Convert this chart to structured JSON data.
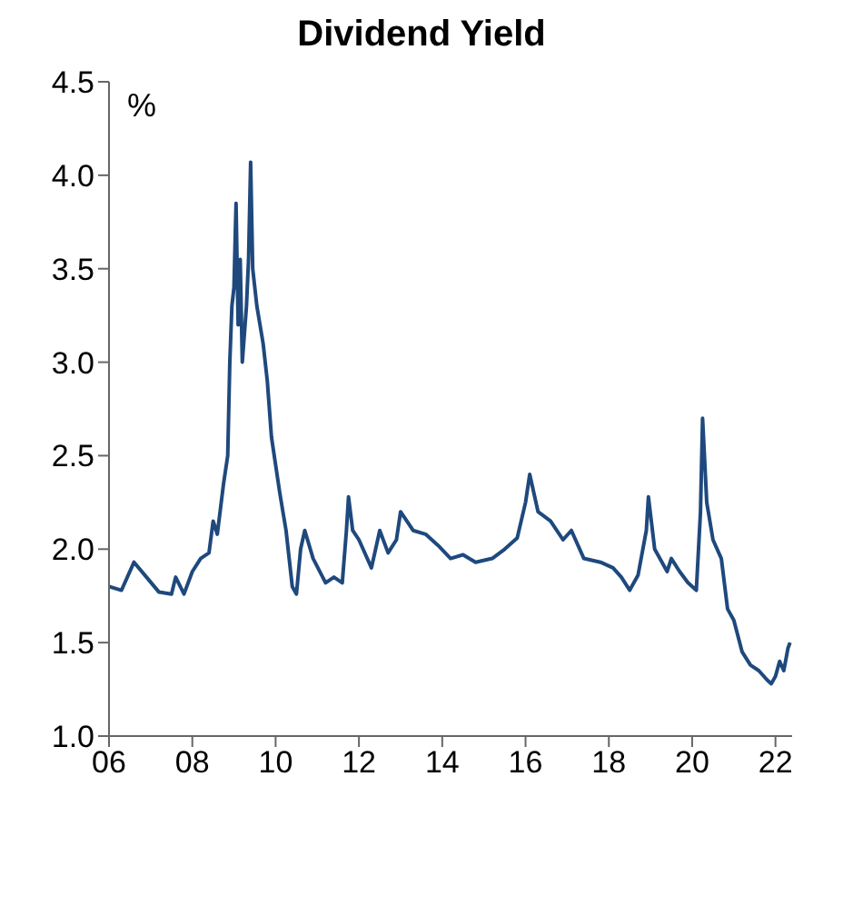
{
  "chart_data": {
    "type": "line",
    "title": "Dividend Yield",
    "ylabel": "%",
    "x": [
      2006.0,
      2006.3,
      2006.6,
      2006.9,
      2007.2,
      2007.5,
      2007.6,
      2007.8,
      2008.0,
      2008.2,
      2008.4,
      2008.5,
      2008.6,
      2008.75,
      2008.85,
      2008.9,
      2008.95,
      2009.0,
      2009.05,
      2009.1,
      2009.15,
      2009.2,
      2009.3,
      2009.35,
      2009.4,
      2009.45,
      2009.55,
      2009.7,
      2009.8,
      2009.9,
      2010.1,
      2010.25,
      2010.4,
      2010.5,
      2010.6,
      2010.7,
      2010.9,
      2011.2,
      2011.4,
      2011.6,
      2011.7,
      2011.75,
      2011.85,
      2012.0,
      2012.3,
      2012.5,
      2012.7,
      2012.9,
      2013.0,
      2013.3,
      2013.6,
      2013.9,
      2014.2,
      2014.5,
      2014.8,
      2015.2,
      2015.5,
      2015.8,
      2016.0,
      2016.1,
      2016.3,
      2016.6,
      2016.9,
      2017.1,
      2017.4,
      2017.8,
      2018.1,
      2018.3,
      2018.5,
      2018.7,
      2018.9,
      2018.95,
      2019.1,
      2019.4,
      2019.5,
      2019.7,
      2019.9,
      2020.1,
      2020.2,
      2020.25,
      2020.35,
      2020.5,
      2020.7,
      2020.85,
      2021.0,
      2021.2,
      2021.4,
      2021.6,
      2021.8,
      2021.9,
      2022.0,
      2022.1,
      2022.2,
      2022.3,
      2022.35
    ],
    "series": [
      {
        "color": "#1f497d",
        "values": [
          1.8,
          1.78,
          1.93,
          1.85,
          1.77,
          1.76,
          1.85,
          1.76,
          1.88,
          1.95,
          1.98,
          2.15,
          2.08,
          2.35,
          2.5,
          3.0,
          3.3,
          3.4,
          3.85,
          3.2,
          3.55,
          3.0,
          3.3,
          3.55,
          4.07,
          3.5,
          3.3,
          3.1,
          2.9,
          2.6,
          2.3,
          2.1,
          1.8,
          1.76,
          2.0,
          2.1,
          1.95,
          1.82,
          1.85,
          1.82,
          2.1,
          2.28,
          2.1,
          2.05,
          1.9,
          2.1,
          1.98,
          2.05,
          2.2,
          2.1,
          2.08,
          2.02,
          1.95,
          1.97,
          1.93,
          1.95,
          2.0,
          2.06,
          2.25,
          2.4,
          2.2,
          2.15,
          2.05,
          2.1,
          1.95,
          1.93,
          1.9,
          1.85,
          1.78,
          1.86,
          2.1,
          2.28,
          2.0,
          1.88,
          1.95,
          1.88,
          1.82,
          1.78,
          2.2,
          2.7,
          2.25,
          2.05,
          1.95,
          1.68,
          1.62,
          1.45,
          1.38,
          1.35,
          1.3,
          1.28,
          1.32,
          1.4,
          1.35,
          1.47,
          1.5
        ]
      }
    ],
    "xlim": [
      2006,
      2022.4
    ],
    "xticks": [
      {
        "value": 2006,
        "label": "06"
      },
      {
        "value": 2008,
        "label": "08"
      },
      {
        "value": 2010,
        "label": "10"
      },
      {
        "value": 2012,
        "label": "12"
      },
      {
        "value": 2014,
        "label": "14"
      },
      {
        "value": 2016,
        "label": "16"
      },
      {
        "value": 2018,
        "label": "18"
      },
      {
        "value": 2020,
        "label": "20"
      },
      {
        "value": 2022,
        "label": "22"
      }
    ],
    "ylim": [
      1,
      4.5
    ],
    "yticks": [
      {
        "value": 1,
        "label": "1.0"
      },
      {
        "value": 1.5,
        "label": "1.5"
      },
      {
        "value": 2,
        "label": "2.0"
      },
      {
        "value": 2.5,
        "label": "2.5"
      },
      {
        "value": 3,
        "label": "3.0"
      },
      {
        "value": 3.5,
        "label": "3.5"
      },
      {
        "value": 4,
        "label": "4.0"
      },
      {
        "value": 4.5,
        "label": "4.5"
      }
    ],
    "marker": "none",
    "line_style": "solid"
  }
}
